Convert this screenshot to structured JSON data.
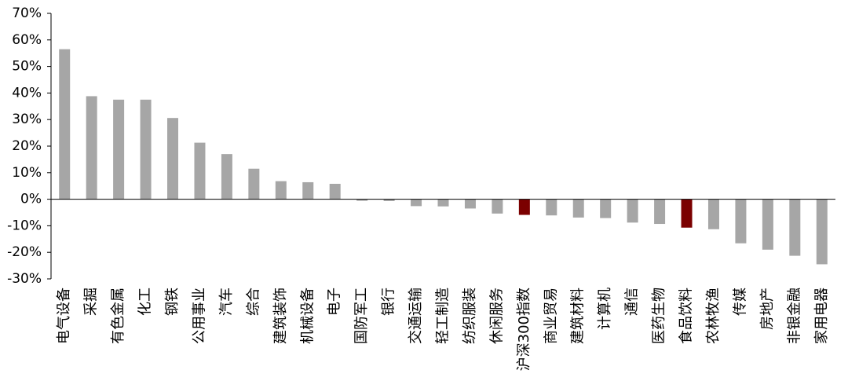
{
  "chart_data": {
    "type": "bar",
    "title": "",
    "xlabel": "",
    "ylabel": "",
    "ylim": [
      -30,
      70
    ],
    "yticks": [
      70,
      60,
      50,
      40,
      30,
      20,
      10,
      0,
      -10,
      -20,
      -30
    ],
    "ytick_labels": [
      "70%",
      "60%",
      "50%",
      "40%",
      "30%",
      "20%",
      "10%",
      "0%",
      "-10%",
      "-20%",
      "-30%"
    ],
    "grid": false,
    "legend": "none",
    "categories": [
      "电气设备",
      "采掘",
      "有色金属",
      "化工",
      "钢铁",
      "公用事业",
      "汽车",
      "综合",
      "建筑装饰",
      "机械设备",
      "电子",
      "国防军工",
      "银行",
      "交通运输",
      "轻工制造",
      "纺织服装",
      "休闲服务",
      "沪深300指数",
      "商业贸易",
      "建筑材料",
      "计算机",
      "通信",
      "医药生物",
      "食品饮料",
      "农林牧渔",
      "传媒",
      "房地产",
      "非银金融",
      "家用电器"
    ],
    "values": [
      56.5,
      38.8,
      37.5,
      37.5,
      30.6,
      21.3,
      17.0,
      11.5,
      6.8,
      6.4,
      5.8,
      -0.6,
      -0.7,
      -2.6,
      -2.7,
      -3.5,
      -5.4,
      -5.9,
      -6.1,
      -6.9,
      -7.1,
      -8.8,
      -9.3,
      -10.7,
      -11.3,
      -16.6,
      -19.0,
      -21.3,
      -24.5
    ],
    "highlight": [
      "沪深300指数",
      "食品饮料"
    ],
    "colors": {
      "bar": "#a6a6a6",
      "highlight": "#7b0000",
      "axis": "#000000"
    }
  }
}
